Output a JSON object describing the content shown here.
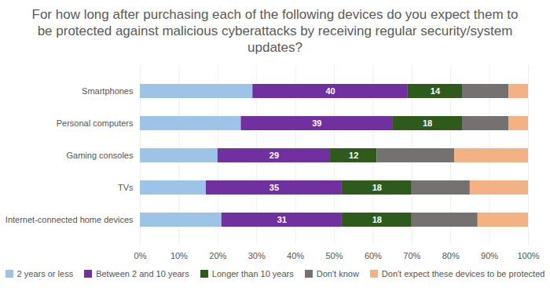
{
  "chart_data": {
    "type": "bar",
    "orientation": "horizontal",
    "stacked": true,
    "grid": true,
    "legend": "bottom",
    "title": "For how long after purchasing each of the following devices do you expect them to be protected against malicious cyberattacks by receiving regular security/system updates?",
    "categories": [
      "Smartphones",
      "Personal computers",
      "Gaming consoles",
      "TVs",
      "Internet-connected home devices"
    ],
    "series": [
      {
        "name": "2 years or less",
        "color": "#9dc3e6",
        "values": [
          29,
          26,
          20,
          17,
          21
        ]
      },
      {
        "name": "Between 2 and 10 years",
        "color": "#7030a0",
        "data_labels": true,
        "values": [
          40,
          39,
          29,
          35,
          31
        ]
      },
      {
        "name": "Longer than 10 years",
        "color": "#2e5a1c",
        "data_labels": true,
        "values": [
          14,
          18,
          12,
          18,
          18
        ]
      },
      {
        "name": "Don't know",
        "color": "#767171",
        "values": [
          12,
          12,
          20,
          15,
          17
        ]
      },
      {
        "name": "Don't expect these devices to be protected",
        "color": "#f4b183",
        "values": [
          5,
          5,
          19,
          15,
          13
        ]
      }
    ],
    "xlim": [
      0,
      100
    ],
    "xticks": [
      {
        "value": 0,
        "label": "0%"
      },
      {
        "value": 10,
        "label": "10%"
      },
      {
        "value": 20,
        "label": "20%"
      },
      {
        "value": 30,
        "label": "30%"
      },
      {
        "value": 40,
        "label": "40%"
      },
      {
        "value": 50,
        "label": "50%"
      },
      {
        "value": 60,
        "label": "60%"
      },
      {
        "value": 70,
        "label": "70%"
      },
      {
        "value": 80,
        "label": "80%"
      },
      {
        "value": 90,
        "label": "90%"
      },
      {
        "value": 100,
        "label": "100%"
      }
    ]
  }
}
